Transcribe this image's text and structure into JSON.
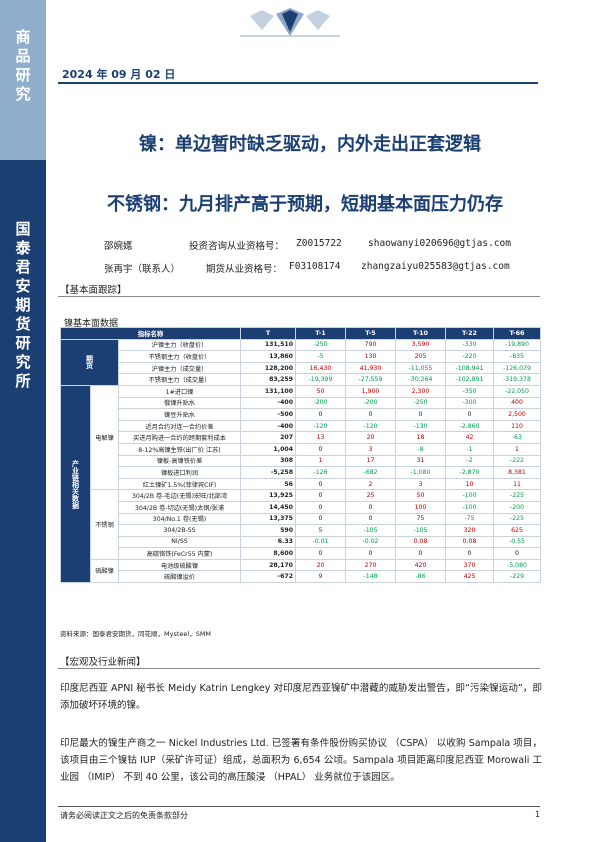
{
  "sidebar": {
    "top_text": [
      "商",
      "品",
      "研",
      "究"
    ],
    "bottom_text": [
      "国",
      "泰",
      "君",
      "安",
      "期",
      "货",
      "研",
      "究",
      "所"
    ]
  },
  "header": {
    "date": "2024 年 09 月 02 日"
  },
  "titles": {
    "main": "镍：单边暂时缺乏驱动，内外走出正套逻辑",
    "sub": "不锈钢：九月排产高于预期，短期基本面压力仍存"
  },
  "authors": [
    {
      "name": "邵婉嫕",
      "cert_label": "投资咨询从业资格号：",
      "cert": "Z0015722",
      "email": "shaowanyi020696@gtjas.com"
    },
    {
      "name": "张再宇（联系人）",
      "cert_label": "期货从业资格号：",
      "cert": "F03108174",
      "email": "zhangzaiyu025583@gtjas.com"
    }
  ],
  "section1": {
    "title": "【基本面跟踪】",
    "caption": "镍基本面数据"
  },
  "table": {
    "headers": [
      "指标名称",
      "",
      "T",
      "T-1",
      "T-5",
      "T-10",
      "T-22",
      "T-66"
    ],
    "groups": [
      {
        "cat": "期货",
        "rows": [
          {
            "name": "沪镍主力（收盘价）",
            "T": "131,510",
            "v": [
              "-250",
              "790",
              "3,590",
              "-330",
              "-19,890"
            ]
          },
          {
            "name": "不锈钢主力（收盘价）",
            "T": "13,860",
            "v": [
              "-5",
              "130",
              "205",
              "-220",
              "-835"
            ]
          },
          {
            "name": "沪镍主力（成交量）",
            "T": "128,200",
            "v": [
              "16,430",
              "41,930",
              "-11,055",
              "-108,941",
              "-126,079"
            ]
          },
          {
            "name": "不锈钢主力（成交量）",
            "T": "83,259",
            "v": [
              "-19,399",
              "-27,559",
              "-30,264",
              "-102,891",
              "-319,378"
            ]
          }
        ]
      },
      {
        "cat": "产业链相关数据",
        "subgroups": [
          {
            "sub": "电解镍",
            "rows": [
              {
                "name": "1#进口镍",
                "T": "131,100",
                "v": [
                  "50",
                  "1,900",
                  "2,300",
                  "-350",
                  "-22,050"
                ]
              },
              {
                "name": "俄镍升贴水",
                "T": "-400",
                "v": [
                  "-200",
                  "-200",
                  "-250",
                  "-300",
                  "400"
                ]
              },
              {
                "name": "镍豆升贴水",
                "T": "-500",
                "v": [
                  "0",
                  "0",
                  "0",
                  "0",
                  "2,500"
                ]
              },
              {
                "name": "近月合约对连一合约价差",
                "T": "-400",
                "v": [
                  "-120",
                  "-120",
                  "-130",
                  "-2,860",
                  "110"
                ]
              },
              {
                "name": "买进月购进一合约的跨期套利成本",
                "T": "207",
                "v": [
                  "13",
                  "20",
                  "18",
                  "42",
                  "-63"
                ]
              },
              {
                "name": "8-12%高镍生铁(出厂价 江苏)",
                "T": "1,004",
                "v": [
                  "0",
                  "3",
                  "-8",
                  "-1",
                  "1"
                ]
              },
              {
                "name": "镍板-高镍铁价差",
                "T": "308",
                "v": [
                  "1",
                  "17",
                  "31",
                  "-2",
                  "-222"
                ]
              },
              {
                "name": "镍板进口利润",
                "T": "-5,258",
                "v": [
                  "-126",
                  "-682",
                  "-1,080",
                  "-2,870",
                  "8,381"
                ]
              },
              {
                "name": "红土镍矿1.5%(菲律宾CIF)",
                "T": "56",
                "v": [
                  "0",
                  "2",
                  "3",
                  "10",
                  "11"
                ]
              }
            ]
          },
          {
            "sub": "不锈钢",
            "rows": [
              {
                "name": "304/2B 卷-毛边(无锡)宏旺/北部湾",
                "T": "13,925",
                "v": [
                  "0",
                  "25",
                  "50",
                  "-100",
                  "-225"
                ]
              },
              {
                "name": "304/2B 卷-切边(无锡)太钢/张浦",
                "T": "14,450",
                "v": [
                  "0",
                  "0",
                  "100",
                  "-100",
                  "-200"
                ]
              },
              {
                "name": "304/No.1 卷(无锡)",
                "T": "13,375",
                "v": [
                  "0",
                  "0",
                  "75",
                  "-75",
                  "-225"
                ]
              },
              {
                "name": "304/2B-SS",
                "T": "590",
                "v": [
                  "5",
                  "-105",
                  "-105",
                  "320",
                  "625"
                ]
              },
              {
                "name": "NI/SS",
                "T": "6.33",
                "v": [
                  "-0.01",
                  "-0.02",
                  "0.08",
                  "0.08",
                  "-0.55"
                ]
              },
              {
                "name": "高碳铬铁(FeCr55 内蒙)",
                "T": "8,600",
                "v": [
                  "0",
                  "0",
                  "0",
                  "0",
                  "0"
                ]
              }
            ]
          },
          {
            "sub": "硫酸镍",
            "rows": [
              {
                "name": "电池级硫酸镍",
                "T": "28,170",
                "v": [
                  "20",
                  "270",
                  "420",
                  "370",
                  "-5,080"
                ]
              },
              {
                "name": "硫酸镍溢价",
                "T": "-672",
                "v": [
                  "9",
                  "-148",
                  "-86",
                  "425",
                  "-229"
                ]
              }
            ]
          }
        ]
      }
    ]
  },
  "source": "资料来源：国泰君安期货，同花顺，Mysteel，SMM",
  "section2": {
    "title": "【宏观及行业新闻】",
    "p1": "印度尼西亚 APNI 秘书长 Meidy Katrin Lengkey 对印度尼西亚镍矿中潜藏的威胁发出警告，即“污染镍运动”，即添加破坏环境的镍。",
    "p2": "印尼最大的镍生产商之一 Nickel Industries Ltd. 已签署有条件股份购买协议 （CSPA） 以收购 Sampala 项目，该项目由三个镍钴 IUP（采矿许可证）组成，总面积为 6,654 公顷。Sampala 项目距离印度尼西亚 Morowali 工业园 （IMIP） 不到 40 公里，该公司的高压酸浸 （HPAL） 业务就位于该园区。"
  },
  "footer": {
    "disclaimer": "请务必阅读正文之后的免责条款部分",
    "page": "1"
  },
  "colors": {
    "navy": "#1b3f73",
    "sidebar_light": "#8faecb",
    "positive": "#c00000",
    "negative": "#00a050"
  }
}
